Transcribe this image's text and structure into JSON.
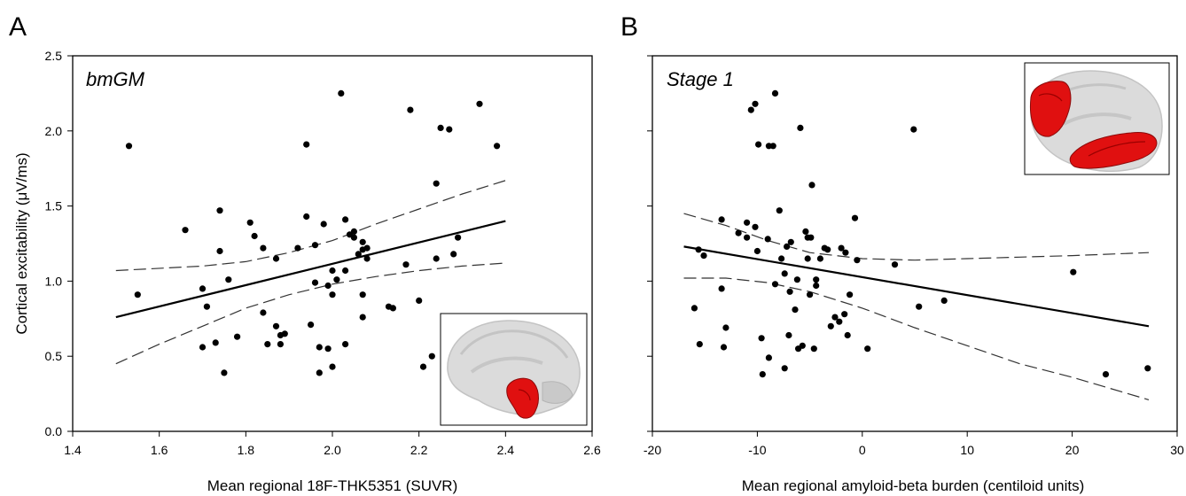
{
  "figure": {
    "y_axis_title": "Cortical excitability (μV/ms)"
  },
  "chart_data": [
    {
      "type": "scatter",
      "panel_letter": "A",
      "panel_label": "bmGM",
      "xlabel": "Mean regional 18F-THK5351 (SUVR)",
      "ylabel": "Cortical excitability (μV/ms)",
      "xlim": [
        1.4,
        2.6
      ],
      "ylim": [
        0.0,
        2.5
      ],
      "x_ticks": [
        "1.4",
        "1.6",
        "1.8",
        "2.0",
        "2.2",
        "2.4",
        "2.6"
      ],
      "y_ticks": [
        "0.0",
        "0.5",
        "1.0",
        "1.5",
        "2.0",
        "2.5"
      ],
      "grid": false,
      "inset": "brain-medial-view-red-region-lower",
      "highlight_color": "#e01010",
      "fit_line": [
        [
          1.5,
          0.76
        ],
        [
          2.4,
          1.4
        ]
      ],
      "ci_upper": [
        [
          1.5,
          1.07
        ],
        [
          1.7,
          1.1
        ],
        [
          1.8,
          1.13
        ],
        [
          1.9,
          1.19
        ],
        [
          2.0,
          1.27
        ],
        [
          2.1,
          1.38
        ],
        [
          2.2,
          1.48
        ],
        [
          2.3,
          1.58
        ],
        [
          2.4,
          1.67
        ]
      ],
      "ci_lower": [
        [
          1.5,
          0.45
        ],
        [
          1.6,
          0.58
        ],
        [
          1.7,
          0.7
        ],
        [
          1.8,
          0.82
        ],
        [
          1.9,
          0.91
        ],
        [
          2.0,
          0.98
        ],
        [
          2.1,
          1.03
        ],
        [
          2.2,
          1.07
        ],
        [
          2.3,
          1.1
        ],
        [
          2.4,
          1.12
        ]
      ],
      "points": [
        [
          1.53,
          1.9
        ],
        [
          1.55,
          0.91
        ],
        [
          1.66,
          1.34
        ],
        [
          1.7,
          0.95
        ],
        [
          1.71,
          0.83
        ],
        [
          1.7,
          0.56
        ],
        [
          1.73,
          0.59
        ],
        [
          1.74,
          1.47
        ],
        [
          1.74,
          1.2
        ],
        [
          1.76,
          1.01
        ],
        [
          1.75,
          0.39
        ],
        [
          1.78,
          0.63
        ],
        [
          1.81,
          1.39
        ],
        [
          1.82,
          1.3
        ],
        [
          1.84,
          1.22
        ],
        [
          1.84,
          0.79
        ],
        [
          1.85,
          0.58
        ],
        [
          1.87,
          1.15
        ],
        [
          1.87,
          0.7
        ],
        [
          1.88,
          0.58
        ],
        [
          1.88,
          0.64
        ],
        [
          1.89,
          0.65
        ],
        [
          1.92,
          1.22
        ],
        [
          1.94,
          1.43
        ],
        [
          1.94,
          1.91
        ],
        [
          1.95,
          0.71
        ],
        [
          1.96,
          1.24
        ],
        [
          1.96,
          0.99
        ],
        [
          1.97,
          0.56
        ],
        [
          1.97,
          0.39
        ],
        [
          1.98,
          1.38
        ],
        [
          1.99,
          0.97
        ],
        [
          1.99,
          0.55
        ],
        [
          2.0,
          1.07
        ],
        [
          2.0,
          0.91
        ],
        [
          2.0,
          0.43
        ],
        [
          2.01,
          1.01
        ],
        [
          2.02,
          2.25
        ],
        [
          2.03,
          1.41
        ],
        [
          2.03,
          0.58
        ],
        [
          2.03,
          1.07
        ],
        [
          2.04,
          1.31
        ],
        [
          2.05,
          1.33
        ],
        [
          2.05,
          1.29
        ],
        [
          2.06,
          1.18
        ],
        [
          2.07,
          1.26
        ],
        [
          2.07,
          1.21
        ],
        [
          2.07,
          0.91
        ],
        [
          2.07,
          0.76
        ],
        [
          2.08,
          1.15
        ],
        [
          2.08,
          1.22
        ],
        [
          2.13,
          0.83
        ],
        [
          2.14,
          0.82
        ],
        [
          2.17,
          1.11
        ],
        [
          2.18,
          2.14
        ],
        [
          2.2,
          0.87
        ],
        [
          2.21,
          0.43
        ],
        [
          2.23,
          0.5
        ],
        [
          2.24,
          1.15
        ],
        [
          2.24,
          1.65
        ],
        [
          2.25,
          2.02
        ],
        [
          2.27,
          2.01
        ],
        [
          2.28,
          1.18
        ],
        [
          2.29,
          1.29
        ],
        [
          2.34,
          2.18
        ],
        [
          2.38,
          1.9
        ]
      ]
    },
    {
      "type": "scatter",
      "panel_letter": "B",
      "panel_label": "Stage 1",
      "xlabel": "Mean regional amyloid-beta burden (centiloid units)",
      "ylabel": "",
      "xlim": [
        -20,
        30
      ],
      "ylim": [
        0.0,
        2.5
      ],
      "x_ticks": [
        "-20",
        "-10",
        "0",
        "10",
        "20",
        "30"
      ],
      "grid": false,
      "inset": "brain-medial-view-red-regions-frontal-temporal",
      "highlight_color": "#e01010",
      "fit_line": [
        [
          -17,
          1.23
        ],
        [
          27.3,
          0.7
        ]
      ],
      "ci_upper": [
        [
          -17,
          1.45
        ],
        [
          -13,
          1.37
        ],
        [
          -9,
          1.27
        ],
        [
          -5,
          1.19
        ],
        [
          0,
          1.15
        ],
        [
          5,
          1.14
        ],
        [
          10,
          1.15
        ],
        [
          15,
          1.16
        ],
        [
          20,
          1.17
        ],
        [
          27.3,
          1.19
        ]
      ],
      "ci_lower": [
        [
          -17,
          1.02
        ],
        [
          -13,
          1.02
        ],
        [
          -9,
          0.99
        ],
        [
          -5,
          0.93
        ],
        [
          0,
          0.82
        ],
        [
          5,
          0.69
        ],
        [
          10,
          0.57
        ],
        [
          15,
          0.45
        ],
        [
          20,
          0.36
        ],
        [
          27.3,
          0.21
        ]
      ],
      "points": [
        [
          -16.0,
          0.82
        ],
        [
          -15.6,
          1.21
        ],
        [
          -15.5,
          0.58
        ],
        [
          -15.1,
          1.17
        ],
        [
          -13.4,
          1.41
        ],
        [
          -13.4,
          0.95
        ],
        [
          -13.2,
          0.56
        ],
        [
          -13.0,
          0.69
        ],
        [
          -11.8,
          1.32
        ],
        [
          -11.0,
          1.39
        ],
        [
          -11.0,
          1.29
        ],
        [
          -10.6,
          2.14
        ],
        [
          -10.2,
          2.18
        ],
        [
          -10.2,
          1.36
        ],
        [
          -10.0,
          1.2
        ],
        [
          -9.9,
          1.91
        ],
        [
          -9.6,
          0.62
        ],
        [
          -9.5,
          0.38
        ],
        [
          -9.0,
          1.28
        ],
        [
          -8.9,
          1.9
        ],
        [
          -8.9,
          0.49
        ],
        [
          -8.5,
          1.9
        ],
        [
          -8.3,
          2.25
        ],
        [
          -8.3,
          0.98
        ],
        [
          -7.9,
          1.47
        ],
        [
          -7.7,
          1.15
        ],
        [
          -7.4,
          1.05
        ],
        [
          -7.4,
          0.42
        ],
        [
          -7.2,
          1.23
        ],
        [
          -7.0,
          0.64
        ],
        [
          -6.9,
          0.93
        ],
        [
          -6.8,
          1.26
        ],
        [
          -6.4,
          0.81
        ],
        [
          -6.2,
          1.01
        ],
        [
          -6.1,
          0.55
        ],
        [
          -5.9,
          2.02
        ],
        [
          -5.7,
          0.57
        ],
        [
          -5.4,
          1.33
        ],
        [
          -5.2,
          1.29
        ],
        [
          -5.2,
          1.15
        ],
        [
          -5.0,
          0.91
        ],
        [
          -4.8,
          1.64
        ],
        [
          -4.9,
          1.29
        ],
        [
          -4.6,
          0.55
        ],
        [
          -4.4,
          0.97
        ],
        [
          -4.4,
          1.01
        ],
        [
          -4.0,
          1.15
        ],
        [
          -3.6,
          1.22
        ],
        [
          -3.3,
          1.21
        ],
        [
          -3.0,
          0.7
        ],
        [
          -2.6,
          0.76
        ],
        [
          -2.2,
          0.73
        ],
        [
          -2.0,
          1.22
        ],
        [
          -1.7,
          0.78
        ],
        [
          -1.6,
          1.19
        ],
        [
          -1.4,
          0.64
        ],
        [
          -1.2,
          0.91
        ],
        [
          -0.7,
          1.42
        ],
        [
          -0.5,
          1.14
        ],
        [
          0.5,
          0.55
        ],
        [
          3.1,
          1.11
        ],
        [
          4.9,
          2.01
        ],
        [
          5.4,
          0.83
        ],
        [
          7.8,
          0.87
        ],
        [
          20.1,
          1.06
        ],
        [
          23.2,
          0.38
        ],
        [
          27.2,
          0.42
        ]
      ]
    }
  ]
}
